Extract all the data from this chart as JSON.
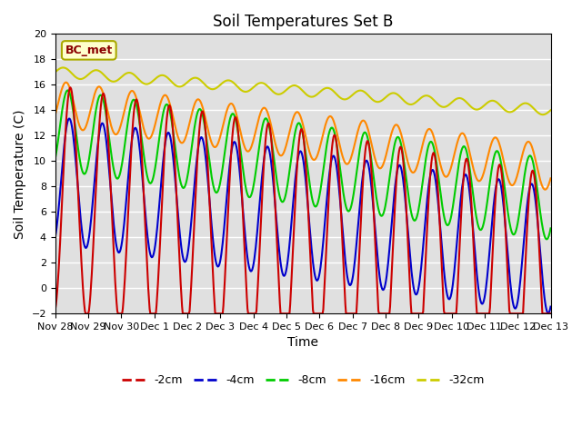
{
  "title": "Soil Temperatures Set B",
  "xlabel": "Time",
  "ylabel": "Soil Temperature (C)",
  "ylim": [
    -2,
    20
  ],
  "yticks": [
    -2,
    0,
    2,
    4,
    6,
    8,
    10,
    12,
    14,
    16,
    18,
    20
  ],
  "x_tick_labels": [
    "Nov 28",
    "Nov 29",
    "Nov 30",
    "Dec 1",
    "Dec 2",
    "Dec 3",
    "Dec 4",
    "Dec 5",
    "Dec 6",
    "Dec 7",
    "Dec 8",
    "Dec 9",
    "Dec 10",
    "Dec 11",
    "Dec 12",
    "Dec 13"
  ],
  "colors": {
    "-2cm": "#cc0000",
    "-4cm": "#0000cc",
    "-8cm": "#00cc00",
    "-16cm": "#ff8800",
    "-32cm": "#cccc00"
  },
  "background_color": "#e0e0e0",
  "annotation_text": "BC_met",
  "annotation_bg": "#ffffcc",
  "annotation_border": "#aaaa00",
  "legend_labels": [
    "-2cm",
    "-4cm",
    "-8cm",
    "-16cm",
    "-32cm"
  ]
}
